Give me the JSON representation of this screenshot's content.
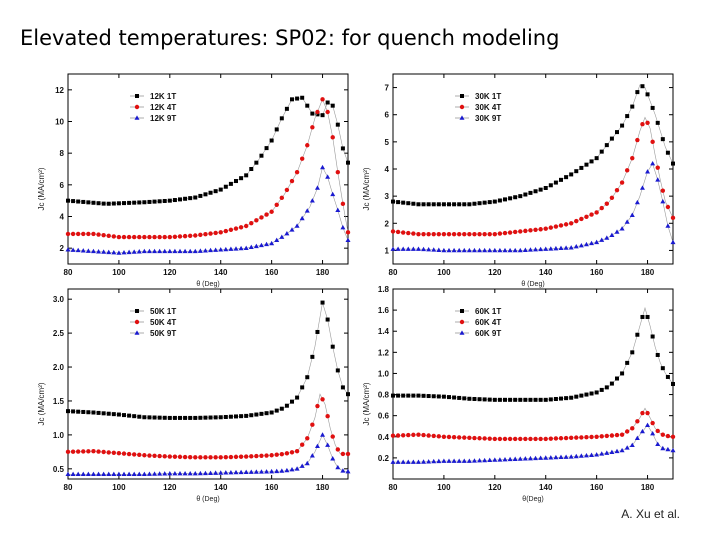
{
  "slide": {
    "title": "Elevated temperatures:  SP02:  for quench modeling",
    "credit": "A. Xu et al."
  },
  "colors": {
    "1T": "#000000",
    "4T": "#e01010",
    "9T": "#1a1ad0",
    "line": "#9a9a9a"
  },
  "chart_data": [
    {
      "type": "scatter",
      "title": "12K",
      "xlabel": "θ (Deg)",
      "ylabel": "Jc (MA/cm²)",
      "xlim": [
        80,
        190
      ],
      "ylim": [
        1,
        13
      ],
      "xticks": [
        80,
        100,
        120,
        140,
        160,
        180
      ],
      "yticks": [
        2,
        4,
        6,
        8,
        10,
        12
      ],
      "legend": [
        "12K 1T",
        "12K 4T",
        "12K 9T"
      ],
      "series": [
        {
          "name": "12K 1T",
          "points": [
            [
              80,
              5.0
            ],
            [
              95,
              4.8
            ],
            [
              110,
              4.9
            ],
            [
              120,
              5.0
            ],
            [
              130,
              5.2
            ],
            [
              140,
              5.7
            ],
            [
              150,
              6.6
            ],
            [
              155,
              7.6
            ],
            [
              160,
              8.8
            ],
            [
              164,
              10.2
            ],
            [
              168,
              11.4
            ],
            [
              172,
              11.5
            ],
            [
              176,
              10.5
            ],
            [
              180,
              10.4
            ],
            [
              182,
              11.2
            ],
            [
              184,
              11.0
            ],
            [
              186,
              9.8
            ],
            [
              188,
              8.3
            ],
            [
              190,
              7.4
            ]
          ]
        },
        {
          "name": "12K 4T",
          "points": [
            [
              80,
              2.9
            ],
            [
              90,
              2.9
            ],
            [
              100,
              2.7
            ],
            [
              110,
              2.7
            ],
            [
              120,
              2.7
            ],
            [
              130,
              2.8
            ],
            [
              140,
              3.0
            ],
            [
              150,
              3.4
            ],
            [
              160,
              4.3
            ],
            [
              165,
              5.4
            ],
            [
              170,
              6.8
            ],
            [
              174,
              8.5
            ],
            [
              177,
              10.2
            ],
            [
              180,
              11.4
            ],
            [
              182,
              10.6
            ],
            [
              184,
              9.0
            ],
            [
              186,
              6.8
            ],
            [
              188,
              4.8
            ],
            [
              190,
              3.0
            ]
          ]
        },
        {
          "name": "12K 9T",
          "points": [
            [
              80,
              1.9
            ],
            [
              90,
              1.8
            ],
            [
              100,
              1.7
            ],
            [
              110,
              1.8
            ],
            [
              120,
              1.8
            ],
            [
              130,
              1.8
            ],
            [
              140,
              1.9
            ],
            [
              150,
              2.0
            ],
            [
              160,
              2.3
            ],
            [
              165,
              2.8
            ],
            [
              170,
              3.4
            ],
            [
              175,
              4.6
            ],
            [
              178,
              5.8
            ],
            [
              180,
              7.1
            ],
            [
              182,
              6.5
            ],
            [
              184,
              5.4
            ],
            [
              186,
              4.4
            ],
            [
              188,
              3.3
            ],
            [
              190,
              2.5
            ]
          ]
        }
      ]
    },
    {
      "type": "scatter",
      "title": "30K",
      "xlabel": "θ (Deg)",
      "ylabel": "Jc (MA/cm²)",
      "xlim": [
        80,
        190
      ],
      "ylim": [
        0.5,
        7.5
      ],
      "xticks": [
        80,
        100,
        120,
        140,
        160,
        180
      ],
      "yticks": [
        1,
        2,
        3,
        4,
        5,
        6,
        7
      ],
      "legend": [
        "30K 1T",
        "30K 4T",
        "30K 9T"
      ],
      "series": [
        {
          "name": "30K 1T",
          "points": [
            [
              80,
              2.8
            ],
            [
              90,
              2.7
            ],
            [
              100,
              2.7
            ],
            [
              110,
              2.7
            ],
            [
              120,
              2.8
            ],
            [
              130,
              3.0
            ],
            [
              140,
              3.3
            ],
            [
              150,
              3.8
            ],
            [
              160,
              4.4
            ],
            [
              165,
              5.0
            ],
            [
              170,
              5.6
            ],
            [
              174,
              6.3
            ],
            [
              177,
              7.1
            ],
            [
              179,
              7.0
            ],
            [
              181,
              6.5
            ],
            [
              183,
              6.0
            ],
            [
              185,
              5.4
            ],
            [
              187,
              4.8
            ],
            [
              190,
              4.2
            ]
          ]
        },
        {
          "name": "30K 4T",
          "points": [
            [
              80,
              1.7
            ],
            [
              90,
              1.6
            ],
            [
              100,
              1.6
            ],
            [
              110,
              1.6
            ],
            [
              120,
              1.6
            ],
            [
              130,
              1.7
            ],
            [
              140,
              1.8
            ],
            [
              150,
              2.0
            ],
            [
              160,
              2.4
            ],
            [
              165,
              2.8
            ],
            [
              170,
              3.5
            ],
            [
              174,
              4.4
            ],
            [
              177,
              5.4
            ],
            [
              179,
              5.9
            ],
            [
              181,
              5.5
            ],
            [
              183,
              4.5
            ],
            [
              185,
              3.6
            ],
            [
              187,
              2.8
            ],
            [
              190,
              2.2
            ]
          ]
        },
        {
          "name": "30K 9T",
          "points": [
            [
              80,
              1.05
            ],
            [
              90,
              1.05
            ],
            [
              100,
              1.0
            ],
            [
              110,
              1.0
            ],
            [
              120,
              1.0
            ],
            [
              130,
              1.0
            ],
            [
              140,
              1.05
            ],
            [
              150,
              1.1
            ],
            [
              160,
              1.3
            ],
            [
              165,
              1.5
            ],
            [
              170,
              1.8
            ],
            [
              174,
              2.3
            ],
            [
              177,
              3.0
            ],
            [
              180,
              3.9
            ],
            [
              182,
              4.2
            ],
            [
              184,
              3.6
            ],
            [
              186,
              2.8
            ],
            [
              188,
              1.9
            ],
            [
              190,
              1.3
            ]
          ]
        }
      ]
    },
    {
      "type": "scatter",
      "title": "50K",
      "xlabel": "θ (Deg)",
      "ylabel": "Jc (MA/cm²)",
      "xlim": [
        80,
        190
      ],
      "ylim": [
        0.35,
        3.15
      ],
      "xticks": [
        80,
        100,
        120,
        140,
        160,
        180
      ],
      "yticks": [
        0.5,
        1.0,
        1.5,
        2.0,
        2.5,
        3.0
      ],
      "legend": [
        "50K 1T",
        "50K 4T",
        "50K 9T"
      ],
      "series": [
        {
          "name": "50K 1T",
          "points": [
            [
              80,
              1.35
            ],
            [
              90,
              1.33
            ],
            [
              100,
              1.3
            ],
            [
              110,
              1.26
            ],
            [
              120,
              1.25
            ],
            [
              130,
              1.25
            ],
            [
              140,
              1.26
            ],
            [
              150,
              1.28
            ],
            [
              160,
              1.33
            ],
            [
              165,
              1.4
            ],
            [
              170,
              1.55
            ],
            [
              174,
              1.85
            ],
            [
              177,
              2.3
            ],
            [
              180,
              2.95
            ],
            [
              182,
              2.7
            ],
            [
              184,
              2.3
            ],
            [
              186,
              1.95
            ],
            [
              188,
              1.7
            ],
            [
              190,
              1.6
            ]
          ]
        },
        {
          "name": "50K 4T",
          "points": [
            [
              80,
              0.75
            ],
            [
              90,
              0.76
            ],
            [
              100,
              0.73
            ],
            [
              110,
              0.7
            ],
            [
              120,
              0.68
            ],
            [
              130,
              0.67
            ],
            [
              140,
              0.67
            ],
            [
              150,
              0.68
            ],
            [
              160,
              0.7
            ],
            [
              165,
              0.72
            ],
            [
              170,
              0.76
            ],
            [
              174,
              0.95
            ],
            [
              177,
              1.25
            ],
            [
              179,
              1.6
            ],
            [
              181,
              1.45
            ],
            [
              183,
              1.1
            ],
            [
              185,
              0.85
            ],
            [
              187,
              0.72
            ],
            [
              190,
              0.72
            ]
          ]
        },
        {
          "name": "50K 9T",
          "points": [
            [
              80,
              0.42
            ],
            [
              90,
              0.42
            ],
            [
              100,
              0.42
            ],
            [
              110,
              0.42
            ],
            [
              120,
              0.43
            ],
            [
              130,
              0.43
            ],
            [
              140,
              0.44
            ],
            [
              150,
              0.45
            ],
            [
              160,
              0.46
            ],
            [
              165,
              0.47
            ],
            [
              170,
              0.5
            ],
            [
              174,
              0.58
            ],
            [
              177,
              0.75
            ],
            [
              180,
              1.0
            ],
            [
              182,
              0.85
            ],
            [
              184,
              0.65
            ],
            [
              186,
              0.52
            ],
            [
              188,
              0.47
            ],
            [
              190,
              0.46
            ]
          ]
        }
      ]
    },
    {
      "type": "scatter",
      "title": "60K",
      "xlabel": "θ(Deg)",
      "ylabel": "Jc (MA/cm²)",
      "xlim": [
        80,
        190
      ],
      "ylim": [
        0.0,
        1.8
      ],
      "xticks": [
        80,
        100,
        120,
        140,
        160,
        180
      ],
      "yticks": [
        0.2,
        0.4,
        0.6,
        0.8,
        1.0,
        1.2,
        1.4,
        1.6,
        1.8
      ],
      "legend": [
        "60K 1T",
        "60K 4T",
        "60K 9T"
      ],
      "series": [
        {
          "name": "60K 1T",
          "points": [
            [
              80,
              0.79
            ],
            [
              90,
              0.79
            ],
            [
              100,
              0.78
            ],
            [
              110,
              0.76
            ],
            [
              120,
              0.75
            ],
            [
              130,
              0.75
            ],
            [
              140,
              0.75
            ],
            [
              150,
              0.77
            ],
            [
              160,
              0.82
            ],
            [
              165,
              0.88
            ],
            [
              170,
              1.0
            ],
            [
              174,
              1.2
            ],
            [
              177,
              1.45
            ],
            [
              179,
              1.62
            ],
            [
              181,
              1.45
            ],
            [
              183,
              1.25
            ],
            [
              185,
              1.1
            ],
            [
              187,
              1.0
            ],
            [
              190,
              0.9
            ]
          ]
        },
        {
          "name": "60K 4T",
          "points": [
            [
              80,
              0.41
            ],
            [
              90,
              0.42
            ],
            [
              100,
              0.4
            ],
            [
              110,
              0.39
            ],
            [
              120,
              0.38
            ],
            [
              130,
              0.38
            ],
            [
              140,
              0.38
            ],
            [
              150,
              0.39
            ],
            [
              160,
              0.4
            ],
            [
              165,
              0.41
            ],
            [
              170,
              0.42
            ],
            [
              174,
              0.48
            ],
            [
              177,
              0.58
            ],
            [
              179,
              0.67
            ],
            [
              181,
              0.58
            ],
            [
              183,
              0.48
            ],
            [
              185,
              0.43
            ],
            [
              187,
              0.41
            ],
            [
              190,
              0.4
            ]
          ]
        },
        {
          "name": "60K 9T",
          "points": [
            [
              80,
              0.16
            ],
            [
              90,
              0.16
            ],
            [
              100,
              0.17
            ],
            [
              110,
              0.17
            ],
            [
              120,
              0.18
            ],
            [
              130,
              0.19
            ],
            [
              140,
              0.2
            ],
            [
              150,
              0.21
            ],
            [
              160,
              0.23
            ],
            [
              165,
              0.25
            ],
            [
              170,
              0.27
            ],
            [
              174,
              0.32
            ],
            [
              177,
              0.42
            ],
            [
              180,
              0.51
            ],
            [
              182,
              0.43
            ],
            [
              184,
              0.33
            ],
            [
              186,
              0.29
            ],
            [
              188,
              0.28
            ],
            [
              190,
              0.27
            ]
          ]
        }
      ]
    }
  ]
}
